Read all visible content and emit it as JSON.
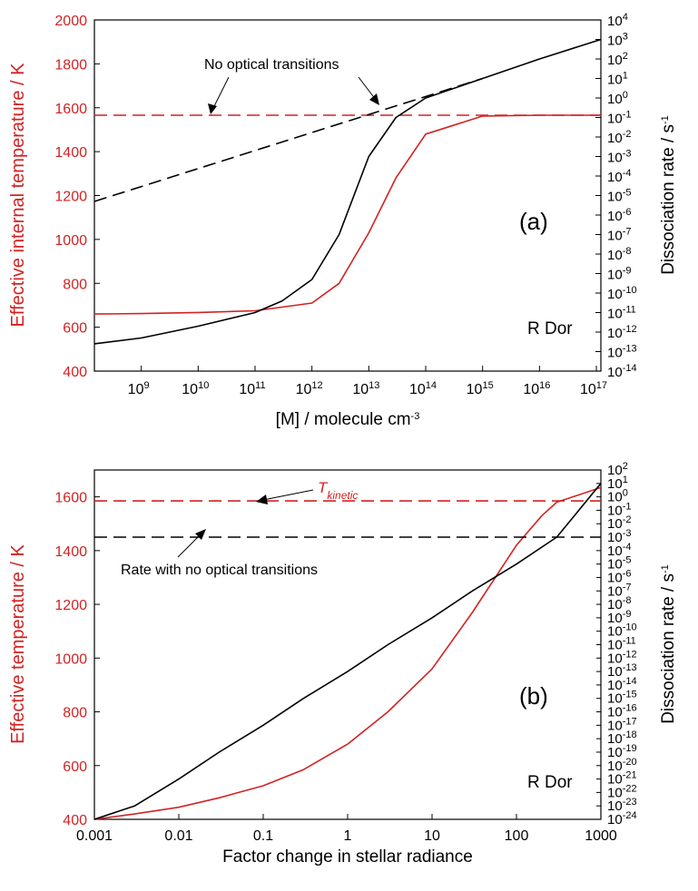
{
  "chart_data": [
    {
      "panel": "a",
      "type": "line",
      "panel_label": "(a)",
      "annotation_star": "R Dor",
      "annotation_text": "No optical transitions",
      "xlabel_main": "[M] / molecule cm",
      "xlabel_sup": "-3",
      "ylabel_left": "Effective internal temperature / K",
      "ylabel_right_main": "Dissociation rate / s",
      "ylabel_right_sup": "-1",
      "x_scale": "log",
      "xlim": [
        150000000.0,
        1.2e+17
      ],
      "x_ticks": [
        {
          "m": "10",
          "e": "9",
          "v": 9
        },
        {
          "m": "10",
          "e": "10",
          "v": 10
        },
        {
          "m": "10",
          "e": "11",
          "v": 11
        },
        {
          "m": "10",
          "e": "12",
          "v": 12
        },
        {
          "m": "10",
          "e": "13",
          "v": 13
        },
        {
          "m": "10",
          "e": "14",
          "v": 14
        },
        {
          "m": "10",
          "e": "15",
          "v": 15
        },
        {
          "m": "10",
          "e": "16",
          "v": 16
        },
        {
          "m": "10",
          "e": "17",
          "v": 17
        }
      ],
      "ylim_left": [
        400,
        2000
      ],
      "y_ticks_left": [
        "400",
        "600",
        "800",
        "1000",
        "1200",
        "1400",
        "1600",
        "1800",
        "2000"
      ],
      "y_scale_right": "log",
      "ylim_right": [
        1e-14,
        10000.0
      ],
      "y_ticks_right": [
        {
          "m": "10",
          "e": "-14",
          "v": -14
        },
        {
          "m": "10",
          "e": "-13",
          "v": -13
        },
        {
          "m": "10",
          "e": "-12",
          "v": -12
        },
        {
          "m": "10",
          "e": "-11",
          "v": -11
        },
        {
          "m": "10",
          "e": "-10",
          "v": -10
        },
        {
          "m": "10",
          "e": "-9",
          "v": -9
        },
        {
          "m": "10",
          "e": "-8",
          "v": -8
        },
        {
          "m": "10",
          "e": "-7",
          "v": -7
        },
        {
          "m": "10",
          "e": "-6",
          "v": -6
        },
        {
          "m": "10",
          "e": "-5",
          "v": -5
        },
        {
          "m": "10",
          "e": "-4",
          "v": -4
        },
        {
          "m": "10",
          "e": "-3",
          "v": -3
        },
        {
          "m": "10",
          "e": "-2",
          "v": -2
        },
        {
          "m": "10",
          "e": "-1",
          "v": -1
        },
        {
          "m": "10",
          "e": "0",
          "v": 0
        },
        {
          "m": "10",
          "e": "1",
          "v": 1
        },
        {
          "m": "10",
          "e": "2",
          "v": 2
        },
        {
          "m": "10",
          "e": "3",
          "v": 3
        },
        {
          "m": "10",
          "e": "4",
          "v": 4
        }
      ],
      "series": [
        {
          "axis": "left",
          "color": "#d22222",
          "style": "solid",
          "x": [
            150000000.0,
            1000000000.0,
            10000000000.0,
            100000000000.0,
            1000000000000.0,
            3000000000000.0,
            10000000000000.0,
            30000000000000.0,
            100000000000000.0,
            1000000000000000.0,
            1e+16,
            1.2e+17
          ],
          "y": [
            660,
            662,
            667,
            675,
            710,
            800,
            1030,
            1280,
            1480,
            1562,
            1566,
            1566
          ]
        },
        {
          "axis": "left",
          "color": "#d22222",
          "style": "dashed",
          "x": [
            150000000.0,
            1.2e+17
          ],
          "y": [
            1566,
            1566
          ]
        },
        {
          "axis": "right",
          "color": "#000000",
          "style": "solid",
          "x": [
            150000000.0,
            1000000000.0,
            10000000000.0,
            100000000000.0,
            300000000000.0,
            1000000000000.0,
            3000000000000.0,
            10000000000000.0,
            30000000000000.0,
            100000000000000.0,
            1000000000000000.0,
            1e+16,
            1.2e+17
          ],
          "y": [
            2.5e-13,
            5e-13,
            2e-12,
            1e-11,
            4e-11,
            5e-10,
            1e-07,
            0.001,
            0.1,
            1,
            10,
            100,
            1000
          ]
        },
        {
          "axis": "right",
          "color": "#000000",
          "style": "dashed",
          "x": [
            150000000.0,
            1000000000000000.0
          ],
          "y": [
            5e-06,
            10
          ]
        }
      ]
    },
    {
      "panel": "b",
      "type": "line",
      "panel_label": "(b)",
      "annotation_star": "R Dor",
      "annotation_text": "Rate with no optical transitions",
      "annotation_tkin_main": "T",
      "annotation_tkin_sub": "kinetic",
      "xlabel": "Factor change in stellar radiance",
      "ylabel_left": "Effective temperature / K",
      "ylabel_right_main": "Dissociation rate / s",
      "ylabel_right_sup": "-1",
      "x_scale": "log",
      "xlim": [
        0.001,
        1000
      ],
      "x_ticks": [
        "0.001",
        "0.01",
        "0.1",
        "1",
        "10",
        "100",
        "1000"
      ],
      "ylim_left": [
        400,
        1700
      ],
      "y_ticks_left": [
        "400",
        "600",
        "800",
        "1000",
        "1200",
        "1400",
        "1600"
      ],
      "y_scale_right": "log",
      "ylim_right": [
        1e-24,
        100.0
      ],
      "y_ticks_right": [
        {
          "m": "10",
          "e": "-24",
          "v": -24
        },
        {
          "m": "10",
          "e": "-23",
          "v": -23
        },
        {
          "m": "10",
          "e": "-22",
          "v": -22
        },
        {
          "m": "10",
          "e": "-21",
          "v": -21
        },
        {
          "m": "10",
          "e": "-20",
          "v": -20
        },
        {
          "m": "10",
          "e": "-19",
          "v": -19
        },
        {
          "m": "10",
          "e": "-18",
          "v": -18
        },
        {
          "m": "10",
          "e": "-17",
          "v": -17
        },
        {
          "m": "10",
          "e": "-16",
          "v": -16
        },
        {
          "m": "10",
          "e": "-15",
          "v": -15
        },
        {
          "m": "10",
          "e": "-14",
          "v": -14
        },
        {
          "m": "10",
          "e": "-13",
          "v": -13
        },
        {
          "m": "10",
          "e": "-12",
          "v": -12
        },
        {
          "m": "10",
          "e": "-11",
          "v": -11
        },
        {
          "m": "10",
          "e": "-10",
          "v": -10
        },
        {
          "m": "10",
          "e": "-9",
          "v": -9
        },
        {
          "m": "10",
          "e": "-8",
          "v": -8
        },
        {
          "m": "10",
          "e": "-7",
          "v": -7
        },
        {
          "m": "10",
          "e": "-6",
          "v": -6
        },
        {
          "m": "10",
          "e": "-5",
          "v": -5
        },
        {
          "m": "10",
          "e": "-4",
          "v": -4
        },
        {
          "m": "10",
          "e": "-3",
          "v": -3
        },
        {
          "m": "10",
          "e": "-2",
          "v": -2
        },
        {
          "m": "10",
          "e": "-1",
          "v": -1
        },
        {
          "m": "10",
          "e": "0",
          "v": 0
        },
        {
          "m": "10",
          "e": "1",
          "v": 1
        },
        {
          "m": "10",
          "e": "2",
          "v": 2
        }
      ],
      "series": [
        {
          "axis": "left",
          "color": "#d22222",
          "style": "solid",
          "x": [
            0.001,
            0.003,
            0.01,
            0.03,
            0.1,
            0.3,
            1,
            3,
            10,
            30,
            100,
            200,
            300,
            1000
          ],
          "y": [
            400,
            420,
            445,
            480,
            525,
            585,
            680,
            800,
            960,
            1170,
            1420,
            1530,
            1580,
            1635
          ]
        },
        {
          "axis": "left",
          "color": "#d22222",
          "style": "dashed",
          "x": [
            0.001,
            1000
          ],
          "y": [
            1585,
            1585
          ]
        },
        {
          "axis": "right",
          "color": "#000000",
          "style": "solid",
          "x": [
            0.001,
            0.003,
            0.01,
            0.03,
            0.1,
            0.3,
            1,
            3,
            10,
            30,
            100,
            300,
            1000
          ],
          "y": [
            1e-24,
            1e-23,
            1e-21,
            1e-19,
            1e-17,
            1e-15,
            1e-13,
            1e-11,
            1e-09,
            1e-07,
            1e-05,
            0.001,
            10
          ]
        },
        {
          "axis": "right",
          "color": "#000000",
          "style": "dashed",
          "x": [
            0.001,
            1000
          ],
          "y": [
            0.001,
            0.001
          ]
        }
      ]
    }
  ]
}
